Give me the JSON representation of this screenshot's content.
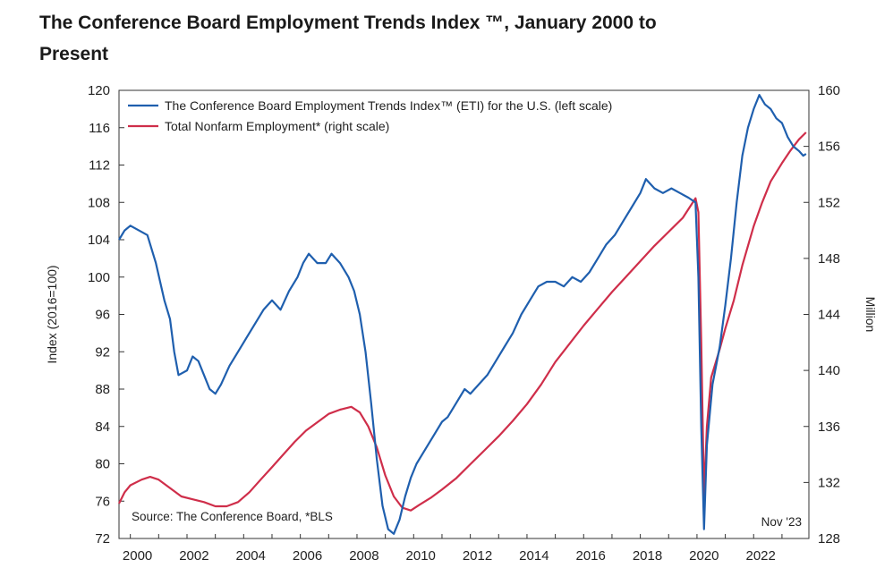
{
  "header": {
    "title": "The Conference Board Employment Trends Index ™, January 2000 to Present"
  },
  "chart_data": {
    "type": "line",
    "title": "The Conference Board Employment Trends Index ™, January 2000 to Present",
    "ylabel": "Index (2016=100)",
    "y2label": "Million",
    "ylim": [
      72,
      120
    ],
    "y2lim": [
      128,
      160
    ],
    "xlim": [
      1999.6,
      2023.95
    ],
    "yticks": [
      "72",
      "76",
      "80",
      "84",
      "88",
      "92",
      "96",
      "100",
      "104",
      "108",
      "112",
      "116",
      "120"
    ],
    "y2ticks": [
      "128",
      "132",
      "136",
      "140",
      "144",
      "148",
      "152",
      "156",
      "160"
    ],
    "xticks": [
      "2000",
      "2002",
      "2004",
      "2006",
      "2008",
      "2010",
      "2012",
      "2014",
      "2016",
      "2018",
      "2020",
      "2022"
    ],
    "grid": false,
    "legend_position": "top-left",
    "colors": {
      "eti": "#1f5fae",
      "nonfarm": "#cf2e4a",
      "axis": "#333333"
    },
    "annotations": {
      "source": "Source: The Conference Board, *BLS",
      "date": "Nov '23"
    },
    "series": [
      {
        "name": "The Conference Board Employment Trends Index™ (ETI) for the U.S. (left scale)",
        "axis": "left",
        "color": "#1f5fae",
        "points": [
          [
            1999.6,
            104.0
          ],
          [
            1999.8,
            105.0
          ],
          [
            2000.0,
            105.5
          ],
          [
            2000.3,
            105.0
          ],
          [
            2000.6,
            104.5
          ],
          [
            2000.9,
            101.5
          ],
          [
            2001.2,
            97.5
          ],
          [
            2001.4,
            95.5
          ],
          [
            2001.55,
            92.0
          ],
          [
            2001.7,
            89.5
          ],
          [
            2002.0,
            90.0
          ],
          [
            2002.2,
            91.5
          ],
          [
            2002.4,
            91.0
          ],
          [
            2002.6,
            89.5
          ],
          [
            2002.8,
            88.0
          ],
          [
            2003.0,
            87.5
          ],
          [
            2003.2,
            88.5
          ],
          [
            2003.5,
            90.5
          ],
          [
            2003.8,
            92.0
          ],
          [
            2004.1,
            93.5
          ],
          [
            2004.4,
            95.0
          ],
          [
            2004.7,
            96.5
          ],
          [
            2005.0,
            97.5
          ],
          [
            2005.3,
            96.5
          ],
          [
            2005.6,
            98.5
          ],
          [
            2005.9,
            100.0
          ],
          [
            2006.1,
            101.5
          ],
          [
            2006.3,
            102.5
          ],
          [
            2006.6,
            101.5
          ],
          [
            2006.9,
            101.5
          ],
          [
            2007.1,
            102.5
          ],
          [
            2007.4,
            101.5
          ],
          [
            2007.7,
            100.0
          ],
          [
            2007.9,
            98.5
          ],
          [
            2008.1,
            96.0
          ],
          [
            2008.3,
            92.0
          ],
          [
            2008.5,
            86.5
          ],
          [
            2008.7,
            80.5
          ],
          [
            2008.9,
            75.5
          ],
          [
            2009.1,
            73.0
          ],
          [
            2009.3,
            72.5
          ],
          [
            2009.5,
            74.0
          ],
          [
            2009.7,
            76.5
          ],
          [
            2009.9,
            78.5
          ],
          [
            2010.1,
            80.0
          ],
          [
            2010.4,
            81.5
          ],
          [
            2010.7,
            83.0
          ],
          [
            2011.0,
            84.5
          ],
          [
            2011.2,
            85.0
          ],
          [
            2011.5,
            86.5
          ],
          [
            2011.8,
            88.0
          ],
          [
            2012.0,
            87.5
          ],
          [
            2012.3,
            88.5
          ],
          [
            2012.6,
            89.5
          ],
          [
            2012.9,
            91.0
          ],
          [
            2013.2,
            92.5
          ],
          [
            2013.5,
            94.0
          ],
          [
            2013.8,
            96.0
          ],
          [
            2014.1,
            97.5
          ],
          [
            2014.4,
            99.0
          ],
          [
            2014.7,
            99.5
          ],
          [
            2015.0,
            99.5
          ],
          [
            2015.3,
            99.0
          ],
          [
            2015.6,
            100.0
          ],
          [
            2015.9,
            99.5
          ],
          [
            2016.2,
            100.5
          ],
          [
            2016.5,
            102.0
          ],
          [
            2016.8,
            103.5
          ],
          [
            2017.1,
            104.5
          ],
          [
            2017.4,
            106.0
          ],
          [
            2017.7,
            107.5
          ],
          [
            2018.0,
            109.0
          ],
          [
            2018.2,
            110.5
          ],
          [
            2018.5,
            109.5
          ],
          [
            2018.8,
            109.0
          ],
          [
            2019.1,
            109.5
          ],
          [
            2019.4,
            109.0
          ],
          [
            2019.7,
            108.5
          ],
          [
            2019.95,
            108.0
          ],
          [
            2020.05,
            100.0
          ],
          [
            2020.15,
            84.0
          ],
          [
            2020.25,
            73.0
          ],
          [
            2020.35,
            82.0
          ],
          [
            2020.55,
            88.5
          ],
          [
            2020.8,
            92.5
          ],
          [
            2021.0,
            97.0
          ],
          [
            2021.2,
            102.0
          ],
          [
            2021.4,
            108.0
          ],
          [
            2021.6,
            113.0
          ],
          [
            2021.8,
            116.0
          ],
          [
            2022.0,
            118.0
          ],
          [
            2022.2,
            119.5
          ],
          [
            2022.4,
            118.5
          ],
          [
            2022.6,
            118.0
          ],
          [
            2022.8,
            117.0
          ],
          [
            2023.0,
            116.5
          ],
          [
            2023.2,
            115.0
          ],
          [
            2023.4,
            114.0
          ],
          [
            2023.6,
            113.5
          ],
          [
            2023.75,
            113.0
          ],
          [
            2023.85,
            113.2
          ]
        ]
      },
      {
        "name": "Total Nonfarm Employment* (right scale)",
        "axis": "right",
        "color": "#cf2e4a",
        "points": [
          [
            1999.6,
            130.5
          ],
          [
            1999.8,
            131.3
          ],
          [
            2000.0,
            131.8
          ],
          [
            2000.4,
            132.2
          ],
          [
            2000.7,
            132.4
          ],
          [
            2001.0,
            132.2
          ],
          [
            2001.4,
            131.6
          ],
          [
            2001.8,
            131.0
          ],
          [
            2002.2,
            130.8
          ],
          [
            2002.6,
            130.6
          ],
          [
            2003.0,
            130.3
          ],
          [
            2003.4,
            130.3
          ],
          [
            2003.8,
            130.6
          ],
          [
            2004.2,
            131.3
          ],
          [
            2004.6,
            132.2
          ],
          [
            2005.0,
            133.1
          ],
          [
            2005.4,
            134.0
          ],
          [
            2005.8,
            134.9
          ],
          [
            2006.2,
            135.7
          ],
          [
            2006.6,
            136.3
          ],
          [
            2007.0,
            136.9
          ],
          [
            2007.4,
            137.2
          ],
          [
            2007.8,
            137.4
          ],
          [
            2008.1,
            137.0
          ],
          [
            2008.4,
            136.0
          ],
          [
            2008.7,
            134.5
          ],
          [
            2009.0,
            132.5
          ],
          [
            2009.3,
            131.0
          ],
          [
            2009.6,
            130.2
          ],
          [
            2009.9,
            130.0
          ],
          [
            2010.2,
            130.4
          ],
          [
            2010.6,
            130.9
          ],
          [
            2011.0,
            131.5
          ],
          [
            2011.5,
            132.3
          ],
          [
            2012.0,
            133.3
          ],
          [
            2012.5,
            134.3
          ],
          [
            2013.0,
            135.3
          ],
          [
            2013.5,
            136.4
          ],
          [
            2014.0,
            137.6
          ],
          [
            2014.5,
            139.0
          ],
          [
            2015.0,
            140.6
          ],
          [
            2015.5,
            141.9
          ],
          [
            2016.0,
            143.2
          ],
          [
            2016.5,
            144.4
          ],
          [
            2017.0,
            145.6
          ],
          [
            2017.5,
            146.7
          ],
          [
            2018.0,
            147.8
          ],
          [
            2018.5,
            148.9
          ],
          [
            2019.0,
            149.9
          ],
          [
            2019.5,
            150.9
          ],
          [
            2019.95,
            152.3
          ],
          [
            2020.05,
            151.3
          ],
          [
            2020.15,
            142.0
          ],
          [
            2020.25,
            131.0
          ],
          [
            2020.35,
            136.0
          ],
          [
            2020.5,
            139.5
          ],
          [
            2020.8,
            141.5
          ],
          [
            2021.0,
            143.0
          ],
          [
            2021.3,
            145.0
          ],
          [
            2021.6,
            147.5
          ],
          [
            2022.0,
            150.3
          ],
          [
            2022.3,
            152.0
          ],
          [
            2022.6,
            153.5
          ],
          [
            2023.0,
            154.8
          ],
          [
            2023.3,
            155.7
          ],
          [
            2023.6,
            156.5
          ],
          [
            2023.85,
            157.0
          ]
        ]
      }
    ]
  }
}
